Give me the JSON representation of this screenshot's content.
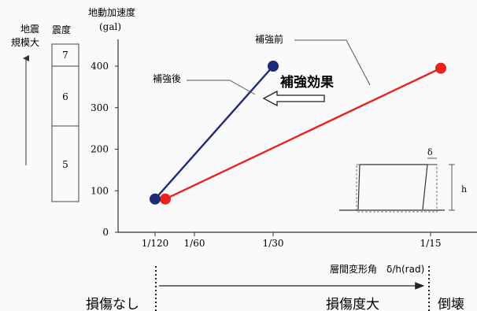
{
  "left_label": {
    "line1": "地震",
    "line2": "規模大"
  },
  "intensity_scale": {
    "header": "震度",
    "levels": [
      "7",
      "6",
      "5"
    ]
  },
  "chart_data": {
    "type": "line",
    "title": "",
    "ylabel": {
      "line1": "地動加速度",
      "line2": "(gal)"
    },
    "xlabel": "層間変形角　δ/h(rad)",
    "ylim": [
      0,
      400
    ],
    "yticks": [
      0,
      100,
      200,
      300,
      400
    ],
    "xticks": [
      "1/120",
      "1/60",
      "1/30",
      "1/15"
    ],
    "series": [
      {
        "name": "補強後",
        "color": "#1e2a78",
        "points": [
          {
            "x": "1/120",
            "y": 80
          },
          {
            "x": "1/30",
            "y": 400
          }
        ]
      },
      {
        "name": "補強前",
        "color": "#e8231e",
        "points": [
          {
            "x": "1/120",
            "y": 80
          },
          {
            "x": "1/15",
            "y": 395
          }
        ]
      }
    ],
    "annotation": "補強効果",
    "inset": {
      "delta": "δ",
      "h": "h"
    }
  },
  "bottom_scale": {
    "none": "損傷なし",
    "large": "損傷度大",
    "collapse": "倒壊"
  }
}
